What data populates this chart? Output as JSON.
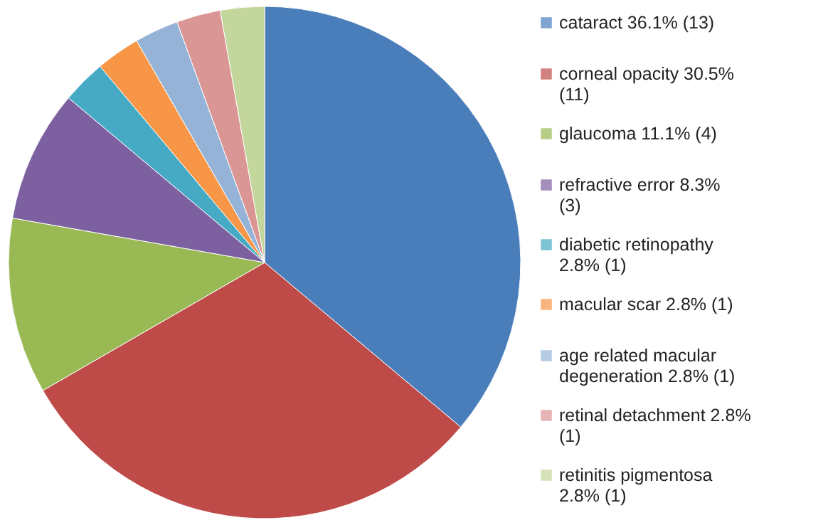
{
  "chart_data": {
    "type": "pie",
    "categories": [
      "cataract 36.1% (13)",
      "corneal opacity 30.5% (11)",
      "glaucoma 11.1% (4)",
      "refractive error 8.3% (3)",
      "diabetic retinopathy 2.8% (1)",
      "macular scar 2.8% (1)",
      "age related macular degeneration 2.8% (1)",
      "retinal detachment 2.8% (1)",
      "retinitis pigmentosa 2.8% (1)"
    ],
    "values": [
      13,
      11,
      4,
      3,
      1,
      1,
      1,
      1,
      1
    ],
    "colors": [
      "#4a7ebb",
      "#be4b48",
      "#98b954",
      "#7d60a0",
      "#46aac5",
      "#f79646",
      "#95b3d7",
      "#d99694",
      "#c3d69b"
    ],
    "legend": "right"
  }
}
